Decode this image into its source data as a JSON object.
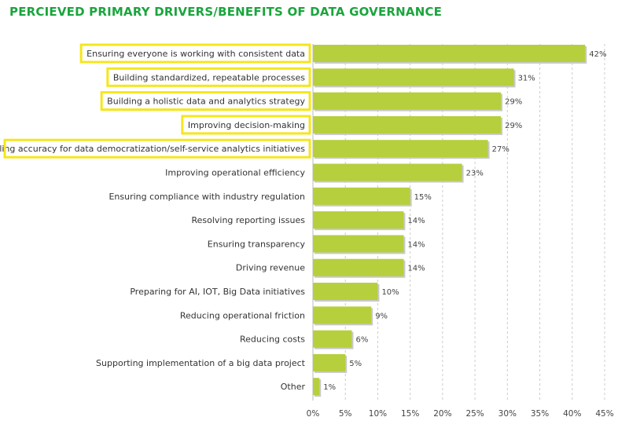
{
  "title": "PERCIEVED PRIMARY DRIVERS/BENEFITS OF DATA GOVERNANCE",
  "colors": {
    "title": "#1aa53d",
    "bar": "#b6cf3c",
    "bar_shadow": "#c9c9c9",
    "highlight": "#f5e61c",
    "grid": "#cccccc"
  },
  "chart_data": {
    "type": "bar",
    "orientation": "horizontal",
    "title": "PERCIEVED PRIMARY DRIVERS/BENEFITS OF DATA GOVERNANCE",
    "xlabel": "",
    "ylabel": "",
    "xlim": [
      0,
      45
    ],
    "grid": true,
    "categories": [
      "Ensuring everyone is working with consistent data",
      "Building standardized, repeatable processes",
      "Building a holistic data and analytics strategy",
      "Improving decision-making",
      "Enabling accuracy for data democratization/self-service analytics initiatives",
      "Improving operational efficiency",
      "Ensuring compliance with industry regulation",
      "Resolving reporting issues",
      "Ensuring transparency",
      "Driving revenue",
      "Preparing for AI, IOT, Big Data initiatives",
      "Reducing operational friction",
      "Reducing costs",
      "Supporting implementation of a big data project",
      "Other"
    ],
    "values": [
      42,
      31,
      29,
      29,
      27,
      23,
      15,
      14,
      14,
      14,
      10,
      9,
      6,
      5,
      1
    ],
    "value_labels": [
      "42%",
      "31%",
      "29%",
      "29%",
      "27%",
      "23%",
      "15%",
      "14%",
      "14%",
      "14%",
      "10%",
      "9%",
      "6%",
      "5%",
      "1%"
    ],
    "highlighted": [
      true,
      true,
      true,
      true,
      true,
      false,
      false,
      false,
      false,
      false,
      false,
      false,
      false,
      false,
      false
    ],
    "x_ticks": [
      0,
      5,
      10,
      15,
      20,
      25,
      30,
      35,
      40,
      45
    ],
    "x_tick_labels": [
      "0%",
      "5%",
      "10%",
      "15%",
      "20%",
      "25%",
      "30%",
      "35%",
      "40%",
      "45%"
    ]
  }
}
